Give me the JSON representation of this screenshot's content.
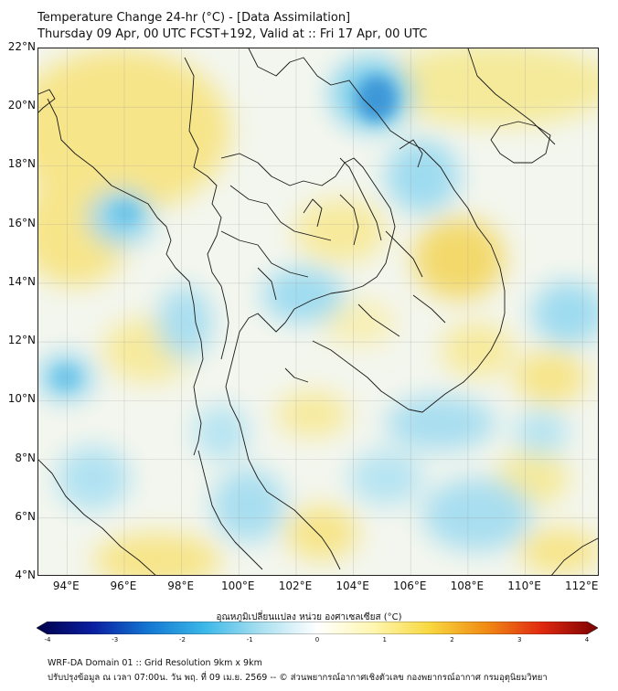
{
  "header": {
    "title_line1": "Temperature Change 24-hr (°C) - [Data Assimilation]",
    "title_line2": "Thursday 09 Apr, 00 UTC FCST+192, Valid at :: Fri 17 Apr, 00 UTC"
  },
  "map": {
    "lat_labels": [
      "22°N",
      "20°N",
      "18°N",
      "16°N",
      "14°N",
      "12°N",
      "10°N",
      "8°N",
      "6°N",
      "4°N"
    ],
    "lon_labels": [
      "94°E",
      "96°E",
      "98°E",
      "100°E",
      "102°E",
      "104°E",
      "106°E",
      "108°E",
      "110°E",
      "112°E"
    ],
    "colors": {
      "warm": "#f6e27a",
      "cool": "#5ec8e6",
      "strong_cool": "#1e78c8",
      "neutral": "#f4f6f0",
      "border": "#1a1a1a"
    }
  },
  "colorbar": {
    "title": "อุณหภูมิเปลี่ยนแปลง หน่วย องศาเซลเซียส (°C)",
    "ticks": [
      "-4",
      "-3",
      "-2",
      "-1",
      "0",
      "1",
      "2",
      "3",
      "4"
    ],
    "stops": [
      "#00004a",
      "#0a1ea0",
      "#1478d2",
      "#3cb8e8",
      "#aae0f0",
      "#ffffff",
      "#fff6b0",
      "#f8d840",
      "#f08c14",
      "#e02810",
      "#7a0000"
    ]
  },
  "footer": {
    "line1": "WRF-DA Domain 01 :: Grid Resolution 9km x 9km",
    "line2": "ปรับปรุงข้อมูล ณ เวลา 07:00น. วัน พฤ. ที่ 09 เม.ย. 2569 -- © ส่วนพยากรณ์อากาศเชิงตัวเลข กองพยากรณ์อากาศ กรมอุตุนิยมวิทยา"
  }
}
